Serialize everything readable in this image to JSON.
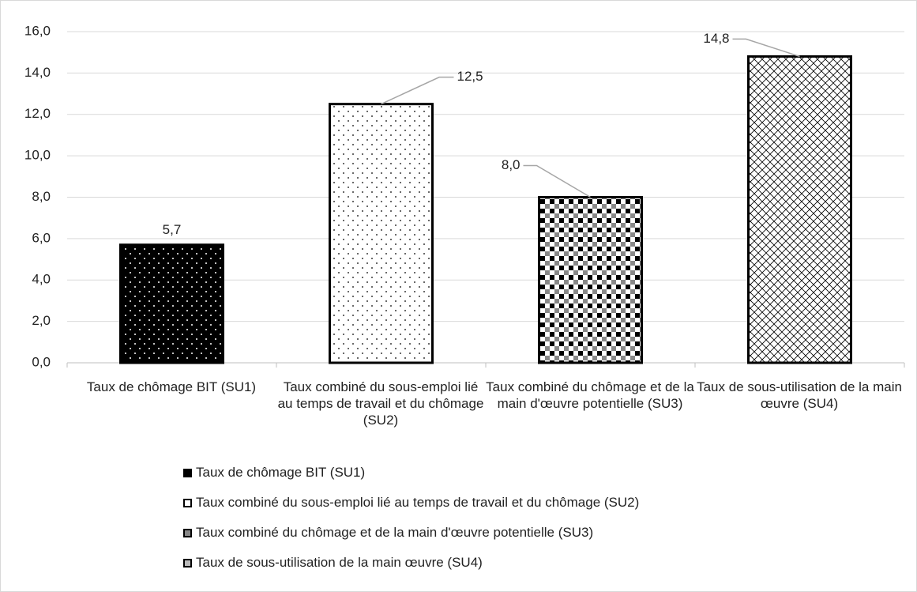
{
  "chart_data": {
    "type": "bar",
    "categories": [
      "Taux de chômage BIT (SU1)",
      "Taux combiné du sous-emploi lié au temps de travail et du chômage (SU2)",
      "Taux combiné du chômage et de la main d'œuvre potentielle (SU3)",
      "Taux de sous-utilisation de la main œuvre (SU4)"
    ],
    "values": [
      5.7,
      12.5,
      8.0,
      14.8
    ],
    "value_labels": [
      "5,7",
      "12,5",
      "8,0",
      "14,8"
    ],
    "ylim": [
      0,
      16
    ],
    "yticks": [
      {
        "value": 0,
        "label": "0,0"
      },
      {
        "value": 2,
        "label": "2,0"
      },
      {
        "value": 4,
        "label": "4,0"
      },
      {
        "value": 6,
        "label": "6,0"
      },
      {
        "value": 8,
        "label": "8,0"
      },
      {
        "value": 10,
        "label": "10,0"
      },
      {
        "value": 12,
        "label": "12,0"
      },
      {
        "value": 14,
        "label": "14,0"
      },
      {
        "value": 16,
        "label": "16,0"
      }
    ],
    "grid": true,
    "legend": "bottom"
  }
}
